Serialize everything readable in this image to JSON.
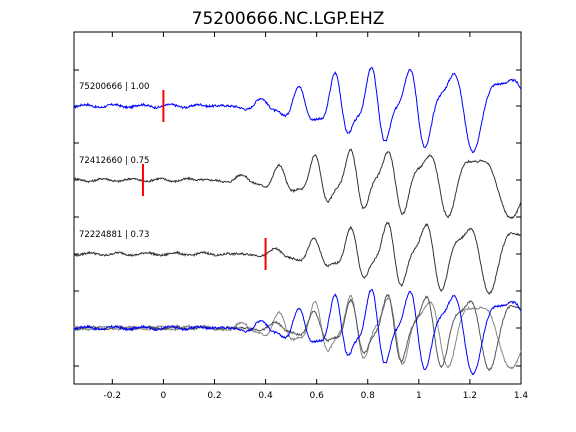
{
  "chart_data": {
    "type": "line",
    "title": "75200666.NC.LGP.EHZ",
    "xlabel": "",
    "ylabel": "",
    "xlim": [
      -0.35,
      1.4
    ],
    "x_ticks": [
      -0.2,
      0,
      0.2,
      0.4,
      0.6,
      0.8,
      1,
      1.2,
      1.4
    ],
    "x_tick_labels": [
      "-0.2",
      "0",
      "0.2",
      "0.4",
      "0.6",
      "0.8",
      "1",
      "1.2",
      "1.4"
    ],
    "grid": false,
    "series": [
      {
        "label": "75200666 | 1.00",
        "color": "#0000ff",
        "pick_time": 0.0,
        "shift": 0.0,
        "onset": 0.18,
        "amp": 1.0,
        "freq": 5.6,
        "phase": 0.0
      },
      {
        "label": "72412660 | 0.75",
        "color": "#333333",
        "pick_time": -0.08,
        "shift": -0.03,
        "onset": 0.15,
        "amp": 0.85,
        "freq": 5.7,
        "phase": 0.6
      },
      {
        "label": "72224881 | 0.73",
        "color": "#333333",
        "pick_time": 0.4,
        "shift": 0.04,
        "onset": 0.22,
        "amp": 0.9,
        "freq": 5.5,
        "phase": 1.2
      }
    ],
    "overlay": {
      "colors": [
        "#888888",
        "#555555",
        "#0000ff"
      ]
    }
  }
}
